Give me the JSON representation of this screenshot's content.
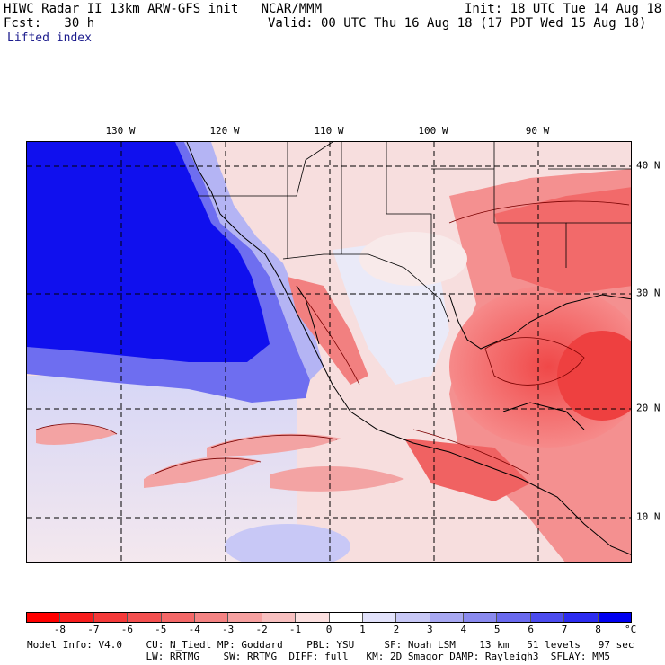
{
  "header": {
    "line1_left": "HIWC Radar II 13km ARW-GFS init   NCAR/MMM",
    "line1_right": "Init: 18 UTC Tue 14 Aug 18",
    "line2_left": "Fcst:   30 h",
    "line2_right": "Valid: 00 UTC Thu 16 Aug 18 (17 PDT Wed 15 Aug 18)",
    "field_name": "Lifted index"
  },
  "longitude_labels": [
    "130 W",
    "120 W",
    "110 W",
    "100 W",
    "90 W"
  ],
  "latitude_labels": [
    "40 N",
    "30 N",
    "20 N",
    "10 N"
  ],
  "colorbar": {
    "tick_labels": [
      "-8",
      "-7",
      "-6",
      "-5",
      "-4",
      "-3",
      "-2",
      "-1",
      "0",
      "1",
      "2",
      "3",
      "4",
      "5",
      "6",
      "7",
      "8"
    ],
    "unit": "°C",
    "colors": [
      "#ff0000",
      "#f81d1d",
      "#f53a3a",
      "#f45050",
      "#f46868",
      "#f48383",
      "#f6a0a0",
      "#f8c0c0",
      "#fce0e0",
      "#ffffff",
      "#e2e2fb",
      "#c8c8f6",
      "#a8a8f2",
      "#8a8aef",
      "#6a6aef",
      "#4c4cef",
      "#2c2cf0",
      "#0000f0"
    ]
  },
  "footer": {
    "line1": "Model Info: V4.0    CU: N_Tiedt MP: Goddard    PBL: YSU     SF: Noah LSM    13 km   51 levels   97 sec",
    "line2": "                    LW: RRTMG    SW: RRTMG  DIFF: full   KM: 2D Smagor DAMP: Rayleigh3  SFLAY: MM5"
  },
  "palette": {
    "ocean_stable": "#0a14e6",
    "near_zero": "#f8e4e4",
    "unstable": "#ef5a5a",
    "contour": "#7a0000",
    "border": "#000000"
  }
}
